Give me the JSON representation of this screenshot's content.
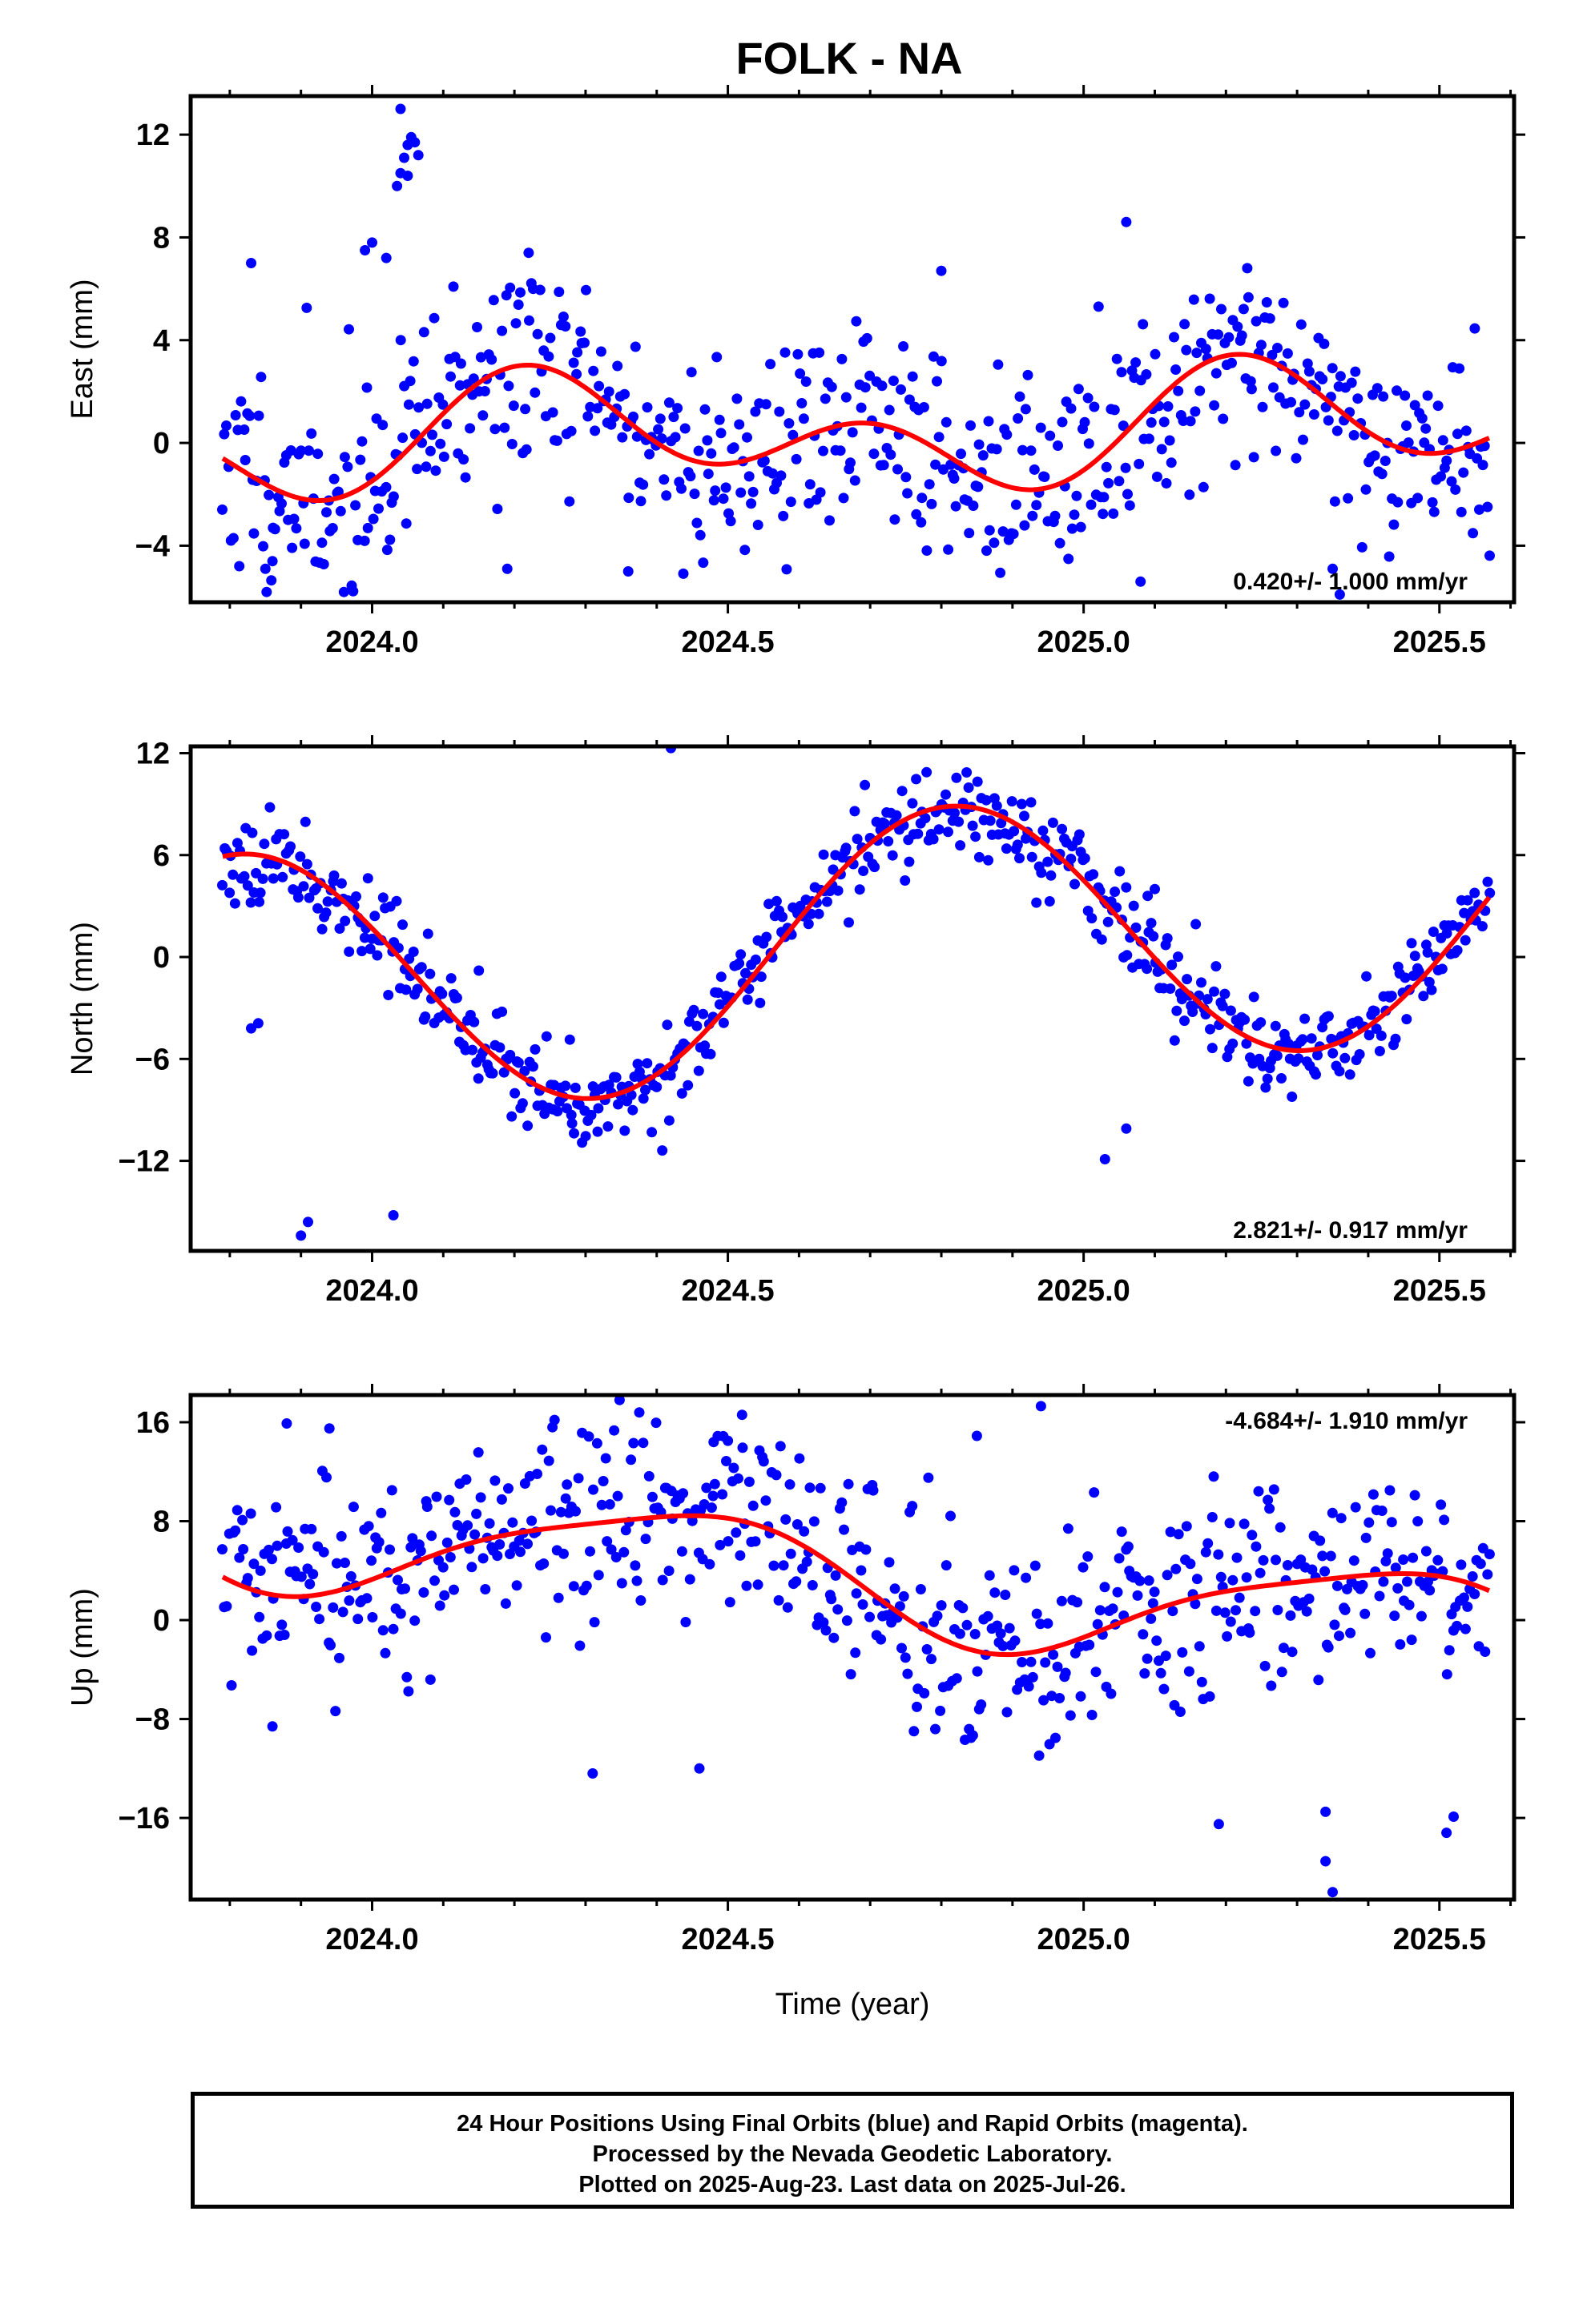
{
  "title": "FOLK - NA",
  "xlabel": "Time (year)",
  "footer": {
    "line1": "24 Hour Positions Using Final Orbits (blue) and Rapid Orbits (magenta).",
    "line2": "Processed by the Nevada Geodetic Laboratory.",
    "line3": "Plotted on 2025-Aug-23. Last data on 2025-Jul-26."
  },
  "colors": {
    "final_orbits": "#0000ff",
    "rapid_orbits": "#ff00ff",
    "model": "#ff0000",
    "frame": "#000000"
  },
  "chart_data": [
    {
      "type": "scatter",
      "component": "East",
      "ylabel": "East (mm)",
      "xlim": [
        2023.745,
        2025.605
      ],
      "ylim": [
        -6.2,
        13.5
      ],
      "xticks": [
        2024.0,
        2024.5,
        2025.0,
        2025.5
      ],
      "xtick_labels": [
        "2024.0",
        "2024.5",
        "2025.0",
        "2025.5"
      ],
      "yticks": [
        -4,
        0,
        4,
        8,
        12
      ],
      "ytick_labels": [
        "−4",
        "0",
        "4",
        "8",
        "12"
      ],
      "rate_text": "0.420+/- 1.000 mm/yr",
      "rate_position": "bottom-right",
      "model": {
        "offset": 0.3,
        "rate": 0.42,
        "annual_sin": -1.35,
        "annual_cos": 0.23,
        "semiannual_sin": 0.86,
        "semiannual_cos": -1.34
      },
      "scatter": {
        "count": 600,
        "start": 2023.79,
        "end": 2025.57,
        "noise_sd": 2.1,
        "seed": 11
      },
      "outliers": [
        {
          "x": 2024.04,
          "y": 10.5
        },
        {
          "x": 2024.045,
          "y": 11.1
        },
        {
          "x": 2024.05,
          "y": 11.6
        },
        {
          "x": 2024.055,
          "y": 11.9
        },
        {
          "x": 2024.06,
          "y": 11.7
        },
        {
          "x": 2024.065,
          "y": 11.2
        },
        {
          "x": 2024.04,
          "y": 13.0
        },
        {
          "x": 2024.035,
          "y": 10.0
        },
        {
          "x": 2024.05,
          "y": 10.4
        },
        {
          "x": 2024.0,
          "y": 7.8
        },
        {
          "x": 2023.99,
          "y": 7.5
        },
        {
          "x": 2024.02,
          "y": 7.2
        },
        {
          "x": 2025.06,
          "y": 8.6
        },
        {
          "x": 2024.8,
          "y": 6.7
        },
        {
          "x": 2025.23,
          "y": 6.8
        },
        {
          "x": 2024.22,
          "y": 7.4
        },
        {
          "x": 2023.83,
          "y": 7.0
        },
        {
          "x": 2025.08,
          "y": -5.4
        },
        {
          "x": 2025.36,
          "y": -5.9
        },
        {
          "x": 2025.35,
          "y": -4.9
        },
        {
          "x": 2023.85,
          "y": -4.9
        },
        {
          "x": 2023.86,
          "y": -4.6
        },
        {
          "x": 2024.36,
          "y": -5.0
        },
        {
          "x": 2024.19,
          "y": -4.9
        }
      ]
    },
    {
      "type": "scatter",
      "component": "North",
      "ylabel": "North (mm)",
      "xlim": [
        2023.745,
        2025.605
      ],
      "ylim": [
        -17.3,
        12.4
      ],
      "xticks": [
        2024.0,
        2024.5,
        2025.0,
        2025.5
      ],
      "xtick_labels": [
        "2024.0",
        "2024.5",
        "2025.0",
        "2025.5"
      ],
      "yticks": [
        -12,
        -6,
        0,
        6,
        12
      ],
      "ytick_labels": [
        "−12",
        "−6",
        "0",
        "6",
        "12"
      ],
      "rate_text": "2.821+/- 0.917 mm/yr",
      "rate_position": "bottom-right",
      "model": {
        "offset": 0.1,
        "rate": 2.821,
        "annual_sin": 7.3,
        "annual_cos": -3.0,
        "semiannual_sin": 0.0,
        "semiannual_cos": 0.0
      },
      "scatter": {
        "count": 600,
        "start": 2023.79,
        "end": 2025.57,
        "noise_sd": 1.3,
        "seed": 23
      },
      "outliers": [
        {
          "x": 2024.42,
          "y": 12.3
        },
        {
          "x": 2023.9,
          "y": -16.4
        },
        {
          "x": 2023.91,
          "y": -15.6
        },
        {
          "x": 2024.03,
          "y": -15.2
        },
        {
          "x": 2025.03,
          "y": -11.9
        },
        {
          "x": 2025.06,
          "y": -10.1
        },
        {
          "x": 2024.28,
          "y": -9.3
        },
        {
          "x": 2024.15,
          "y": -0.8
        },
        {
          "x": 2023.84,
          "y": -3.9
        },
        {
          "x": 2023.83,
          "y": -4.2
        },
        {
          "x": 2025.1,
          "y": 4.0
        },
        {
          "x": 2025.09,
          "y": 3.6
        }
      ]
    },
    {
      "type": "scatter",
      "component": "Up",
      "ylabel": "Up (mm)",
      "xlim": [
        2023.745,
        2025.605
      ],
      "ylim": [
        -22.6,
        18.2
      ],
      "xticks": [
        2024.0,
        2024.5,
        2025.0,
        2025.5
      ],
      "xtick_labels": [
        "2024.0",
        "2024.5",
        "2025.0",
        "2025.5"
      ],
      "yticks": [
        -16,
        -8,
        0,
        8,
        16
      ],
      "ytick_labels": [
        "−16",
        "−8",
        "0",
        "8",
        "16"
      ],
      "rate_text": "-4.684+/- 1.910 mm/yr",
      "rate_position": "top-right",
      "model": {
        "offset": 4.2,
        "rate": -4.684,
        "annual_sin": -2.44,
        "annual_cos": 3.64,
        "semiannual_sin": 0.89,
        "semiannual_cos": 0.39
      },
      "scatter": {
        "count": 600,
        "start": 2023.79,
        "end": 2025.57,
        "noise_sd": 4.1,
        "seed": 37
      },
      "outliers": [
        {
          "x": 2024.94,
          "y": 17.3
        },
        {
          "x": 2024.52,
          "y": 16.6
        },
        {
          "x": 2023.88,
          "y": 15.9
        },
        {
          "x": 2023.94,
          "y": 15.5
        },
        {
          "x": 2024.5,
          "y": 14.5
        },
        {
          "x": 2024.48,
          "y": 14.4
        },
        {
          "x": 2024.85,
          "y": 14.9
        },
        {
          "x": 2025.35,
          "y": -22.0
        },
        {
          "x": 2025.34,
          "y": -19.5
        },
        {
          "x": 2025.19,
          "y": -16.5
        },
        {
          "x": 2025.51,
          "y": -17.2
        },
        {
          "x": 2025.52,
          "y": -15.9
        },
        {
          "x": 2023.86,
          "y": -8.6
        },
        {
          "x": 2024.31,
          "y": -12.4
        },
        {
          "x": 2024.46,
          "y": -12.0
        },
        {
          "x": 2025.34,
          "y": -15.5
        }
      ]
    }
  ]
}
